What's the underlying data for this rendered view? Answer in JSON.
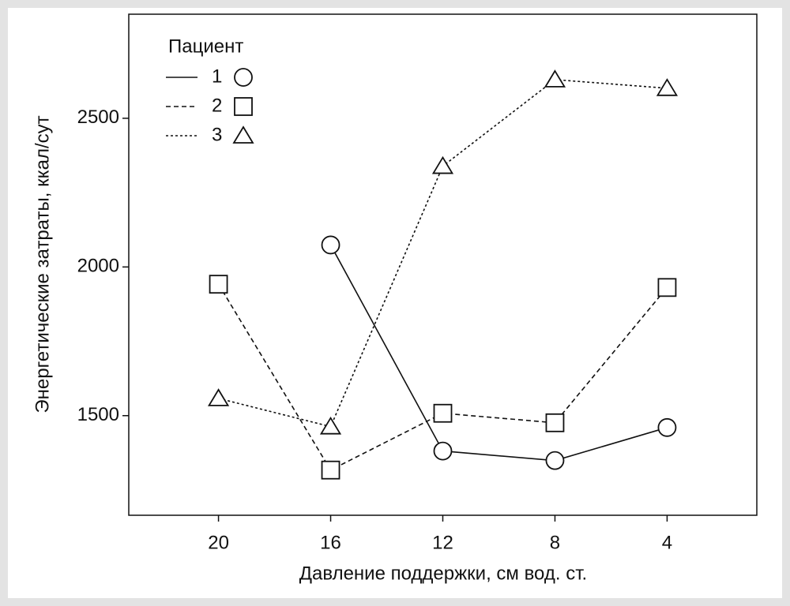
{
  "chart_data": {
    "type": "line",
    "y_label": "Энергетические затраты, ккал/сут",
    "x_label": "Давление поддержки, см вод. ст.",
    "legend_title": "Пациент",
    "legend_position": "upper left",
    "x": [
      20,
      16,
      12,
      8,
      4
    ],
    "xlim": [
      23.2,
      0.8
    ],
    "xticks": [
      20,
      16,
      12,
      8,
      4
    ],
    "ylim": [
      1165,
      2850
    ],
    "yticks": [
      1500,
      2000,
      2500
    ],
    "grid": false,
    "series": [
      {
        "name": "1",
        "color": "#111111",
        "dash": "none",
        "marker": "circle",
        "values": [
          null,
          2074,
          1381,
          1349,
          1460
        ]
      },
      {
        "name": "2",
        "color": "#111111",
        "dash": "6,4",
        "marker": "square",
        "values": [
          1942,
          1317,
          1508,
          1476,
          1931
        ]
      },
      {
        "name": "3",
        "color": "#111111",
        "dash": "3,3",
        "marker": "triangle",
        "values": [
          1558,
          1463,
          2339,
          2630,
          2601
        ]
      }
    ]
  }
}
